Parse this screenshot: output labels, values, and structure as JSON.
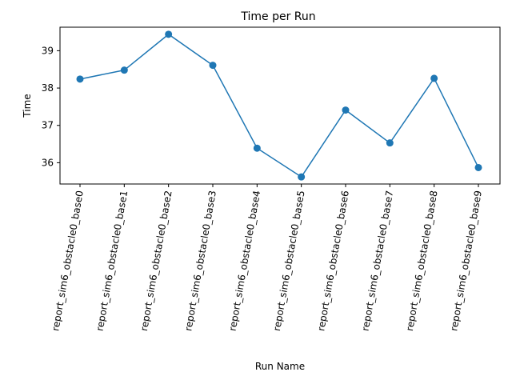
{
  "chart_data": {
    "type": "line",
    "title": "Time per Run",
    "xlabel": "Run Name",
    "ylabel": "Time",
    "categories": [
      "report_sim6_obstacle0_base0",
      "report_sim6_obstacle0_base1",
      "report_sim6_obstacle0_base2",
      "report_sim6_obstacle0_base3",
      "report_sim6_obstacle0_base4",
      "report_sim6_obstacle0_base5",
      "report_sim6_obstacle0_base6",
      "report_sim6_obstacle0_base7",
      "report_sim6_obstacle0_base8",
      "report_sim6_obstacle0_base9"
    ],
    "values": [
      38.24,
      38.48,
      39.44,
      38.61,
      36.39,
      35.62,
      37.41,
      36.53,
      38.26,
      35.87
    ],
    "yticks": [
      36,
      37,
      38,
      39
    ],
    "ylim": [
      35.43,
      39.63
    ],
    "marker": "circle",
    "line_color": "#1f77b4",
    "grid": false,
    "legend": false
  }
}
